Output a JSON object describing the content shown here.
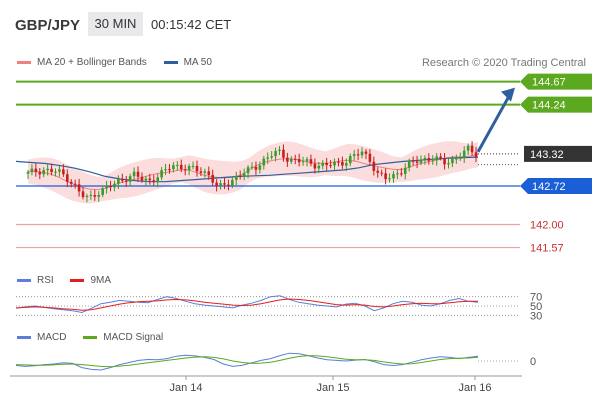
{
  "header": {
    "symbol": "GBP/JPY",
    "timeframe": "30 MIN",
    "time": "00:15:42 CET"
  },
  "legend_main": [
    {
      "name": "MA 20 + Bollinger Bands",
      "color": "#f08080"
    },
    {
      "name": "MA 50",
      "color": "#2f5f9e"
    }
  ],
  "credit": "Research © 2020 Trading Central",
  "rsi_legend": [
    {
      "name": "RSI",
      "color": "#5b7fd6"
    },
    {
      "name": "9MA",
      "color": "#e02020"
    }
  ],
  "macd_legend": [
    {
      "name": "MACD",
      "color": "#5b7fd6"
    },
    {
      "name": "MACD Signal",
      "color": "#5ca81e"
    }
  ],
  "colors": {
    "target": "#5ca81e",
    "pivot": "#1a5ed8",
    "support": "#f0a0a0",
    "candle_up": "#3a9a2a",
    "candle_down": "#c81e1e",
    "arrow": "#2f5f9e",
    "last_price_bg": "#333333",
    "band_fill": "#fbd9d9"
  },
  "chart_data": {
    "type": "candlestick",
    "x_ticks": [
      "Jan 14",
      "Jan 15",
      "Jan 16"
    ],
    "ylim": [
      141.3,
      144.85
    ],
    "levels": [
      {
        "value": 144.67,
        "label": "144.67",
        "kind": "resistance"
      },
      {
        "value": 144.24,
        "label": "144.24",
        "kind": "resistance"
      },
      {
        "value": 143.32,
        "label": "143.32",
        "kind": "last"
      },
      {
        "value": 142.72,
        "label": "142.72",
        "kind": "pivot"
      },
      {
        "value": 142.0,
        "label": "142.00",
        "kind": "support"
      },
      {
        "value": 141.57,
        "label": "141.57",
        "kind": "support"
      }
    ],
    "close_path": [
      142.95,
      143.0,
      143.02,
      143.0,
      142.98,
      142.9,
      142.75,
      142.55,
      142.48,
      142.6,
      142.65,
      142.72,
      142.82,
      142.88,
      142.92,
      142.85,
      142.82,
      142.9,
      142.98,
      143.12,
      143.08,
      143.05,
      143.02,
      143.0,
      142.92,
      142.66,
      142.75,
      142.85,
      142.95,
      143.0,
      143.08,
      143.2,
      143.3,
      143.35,
      143.25,
      143.2,
      143.18,
      143.15,
      143.12,
      143.1,
      143.12,
      143.15,
      143.2,
      143.28,
      143.35,
      143.22,
      142.95,
      142.85,
      142.9,
      143.0,
      143.1,
      143.18,
      143.22,
      143.25,
      143.2,
      143.15,
      143.22,
      143.3,
      143.4,
      143.32
    ],
    "ma50": [
      143.18,
      143.16,
      143.14,
      143.1,
      143.05,
      142.98,
      142.9,
      142.85,
      142.82,
      142.8,
      142.8,
      142.82,
      142.84,
      142.86,
      142.88,
      142.9,
      142.91,
      142.92,
      142.94,
      142.96,
      142.98,
      143.0,
      143.02,
      143.06,
      143.12,
      143.15,
      143.18,
      143.2,
      143.22,
      143.24,
      143.25,
      143.26
    ],
    "projection": {
      "from": 143.32,
      "to": 144.67
    },
    "rsi": {
      "ticks": [
        70,
        50,
        30
      ],
      "ylim": [
        20,
        80
      ],
      "rsi": [
        45,
        48,
        50,
        47,
        44,
        42,
        40,
        36,
        45,
        55,
        58,
        62,
        60,
        58,
        57,
        64,
        70,
        66,
        60,
        55,
        52,
        50,
        48,
        46,
        52,
        56,
        62,
        70,
        72,
        64,
        58,
        55,
        52,
        50,
        48,
        54,
        56,
        50,
        40,
        46,
        55,
        60,
        58,
        52,
        50,
        55,
        62,
        66,
        60,
        58
      ],
      "ma9": [
        46,
        47,
        48,
        47,
        46,
        44,
        43,
        41,
        42,
        46,
        50,
        54,
        57,
        59,
        60,
        61,
        63,
        64,
        63,
        61,
        58,
        56,
        54,
        52,
        51,
        52,
        55,
        59,
        63,
        65,
        64,
        62,
        59,
        56,
        53,
        52,
        53,
        52,
        49,
        48,
        50,
        53,
        55,
        56,
        55,
        55,
        57,
        59,
        60,
        60
      ]
    },
    "macd": {
      "ticks": [
        0
      ],
      "ylim": [
        -0.5,
        0.5
      ],
      "macd": [
        -0.15,
        -0.18,
        -0.16,
        -0.12,
        -0.1,
        -0.06,
        -0.08,
        -0.22,
        -0.28,
        -0.3,
        -0.22,
        -0.12,
        -0.05,
        0.02,
        0.05,
        0.04,
        0.08,
        0.16,
        0.19,
        0.17,
        0.12,
        0.05,
        -0.1,
        -0.18,
        -0.14,
        -0.06,
        0.02,
        0.08,
        0.18,
        0.26,
        0.24,
        0.18,
        0.1,
        0.04,
        0.02,
        0.0,
        0.03,
        0.05,
        -0.02,
        -0.12,
        -0.15,
        -0.12,
        -0.04,
        0.04,
        0.1,
        0.14,
        0.12,
        0.08,
        0.12,
        0.16
      ],
      "signal": [
        -0.12,
        -0.13,
        -0.14,
        -0.14,
        -0.13,
        -0.11,
        -0.1,
        -0.12,
        -0.15,
        -0.18,
        -0.19,
        -0.17,
        -0.14,
        -0.1,
        -0.06,
        -0.02,
        0.02,
        0.06,
        0.1,
        0.13,
        0.14,
        0.12,
        0.07,
        0.0,
        -0.05,
        -0.08,
        -0.07,
        -0.04,
        0.02,
        0.09,
        0.15,
        0.18,
        0.17,
        0.14,
        0.1,
        0.06,
        0.04,
        0.04,
        0.02,
        -0.03,
        -0.07,
        -0.1,
        -0.09,
        -0.05,
        0.0,
        0.05,
        0.08,
        0.09,
        0.1,
        0.12
      ]
    }
  }
}
